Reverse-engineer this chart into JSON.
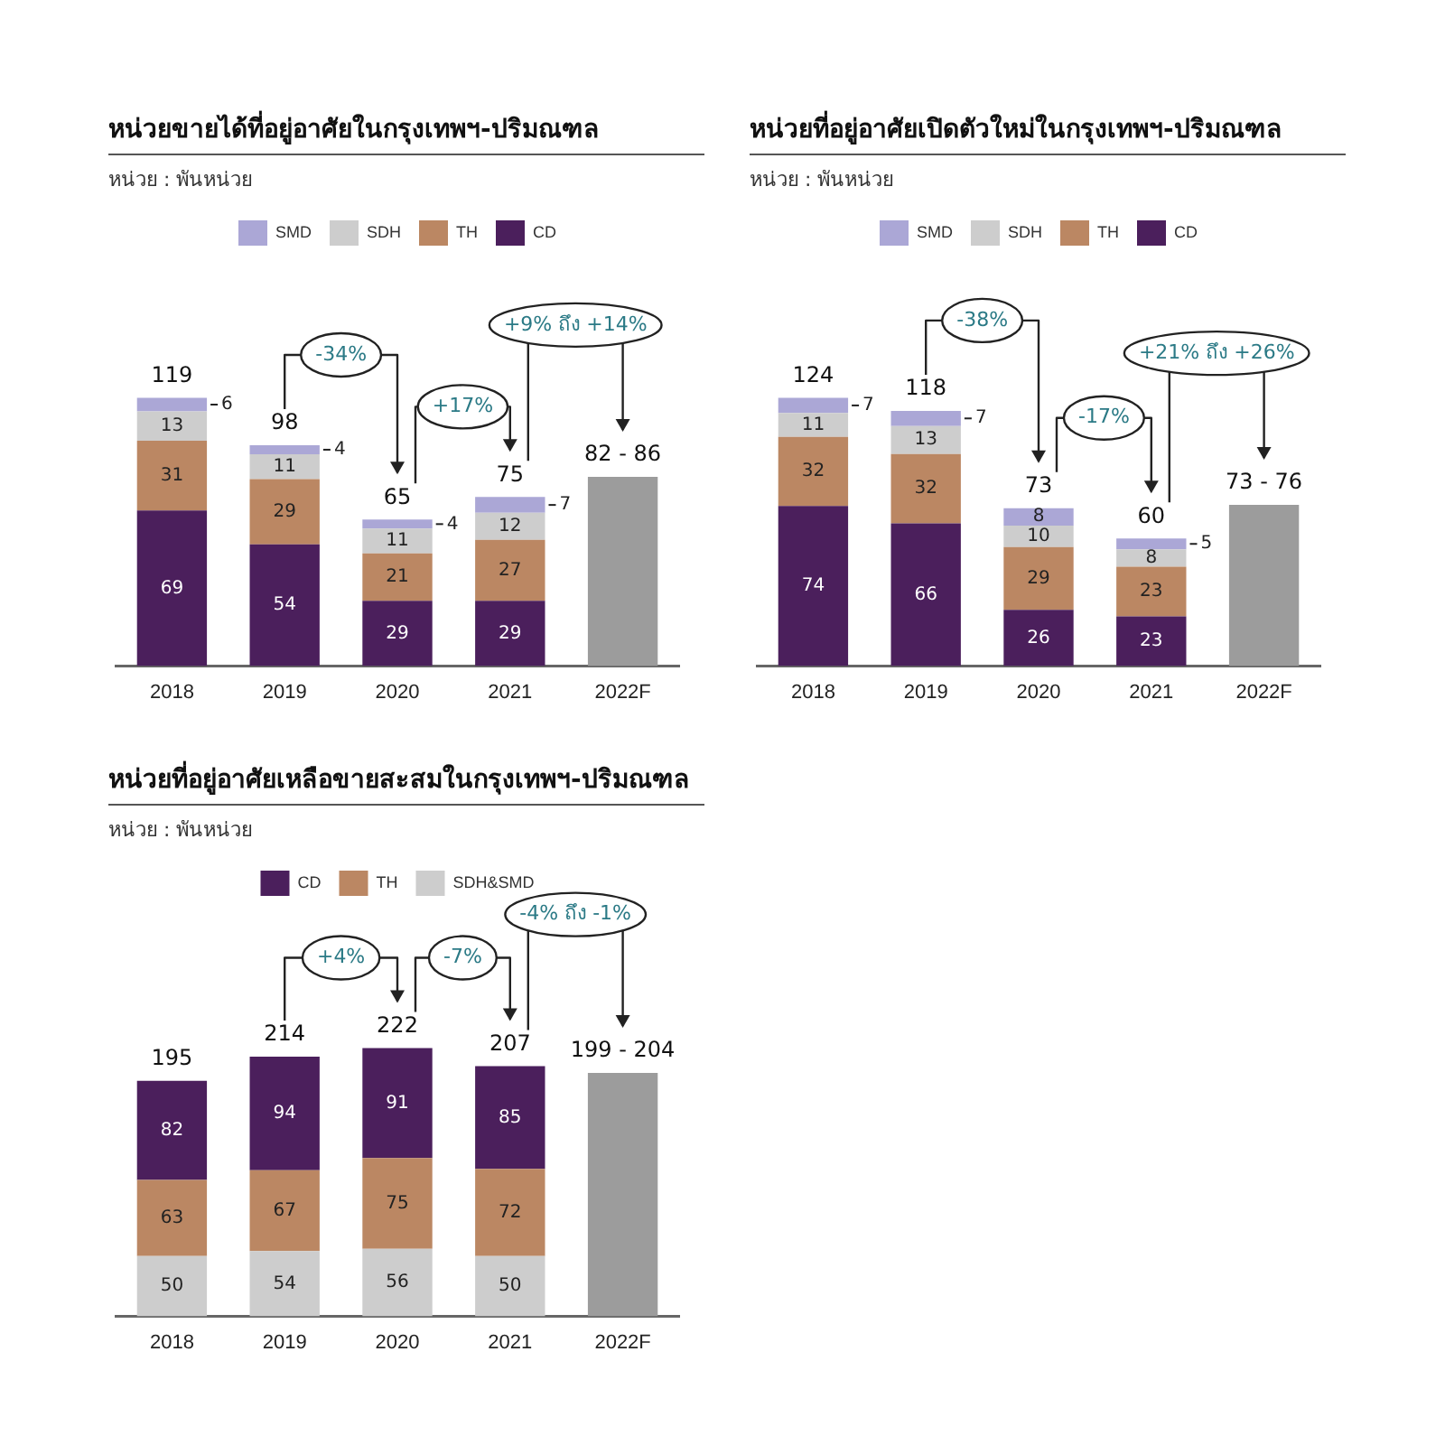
{
  "chart_data": [
    {
      "type": "bar",
      "title": "หน่วยขายได้ที่อยู่อาศัยในกรุงเทพฯ-ปริมณฑล",
      "subtitle": "หน่วย : พันหน่วย",
      "stacked": true,
      "legend": "top",
      "grid": false,
      "tick_labels": "x",
      "categories": [
        "2018",
        "2019",
        "2020",
        "2021",
        "2022F"
      ],
      "series": [
        {
          "name": "CD",
          "color": "#4b1f5c",
          "values": [
            69,
            54,
            29,
            29,
            null
          ],
          "value_labels": [
            "69",
            "54",
            "29",
            "29",
            null
          ]
        },
        {
          "name": "TH",
          "color": "#bb8763",
          "values": [
            31,
            29,
            21,
            27,
            null
          ],
          "value_labels": [
            "31",
            "29",
            "21",
            "27",
            null
          ]
        },
        {
          "name": "SDH",
          "color": "#cdcdcd",
          "values": [
            13,
            11,
            11,
            12,
            null
          ],
          "value_labels": [
            "13",
            "11",
            "11",
            "12",
            null
          ]
        },
        {
          "name": "SMD",
          "color": "#aba7d6",
          "values": [
            6,
            4,
            4,
            7,
            null
          ],
          "value_labels": [
            "6",
            "4",
            "4",
            "7",
            null
          ]
        },
        {
          "color": "#9c9c9c",
          "values": [
            null,
            null,
            null,
            null,
            84
          ],
          "value_labels": [
            null,
            null,
            null,
            null,
            null
          ]
        }
      ],
      "totals": [
        "119",
        "98",
        "65",
        "75",
        "82 - 86"
      ],
      "annotations": [
        "-34%",
        "+17%",
        "+9% ถึง +14%"
      ]
    },
    {
      "type": "bar",
      "title": "หน่วยที่อยู่อาศัยเปิดตัวใหม่ในกรุงเทพฯ-ปริมณฑล",
      "subtitle": "หน่วย : พันหน่วย",
      "stacked": true,
      "legend": "top",
      "grid": false,
      "tick_labels": "x",
      "categories": [
        "2018",
        "2019",
        "2020",
        "2021",
        "2022F"
      ],
      "series": [
        {
          "name": "CD",
          "color": "#4b1f5c",
          "values": [
            74,
            66,
            26,
            23,
            null
          ],
          "value_labels": [
            "74",
            "66",
            "26",
            "23",
            null
          ]
        },
        {
          "name": "TH",
          "color": "#bb8763",
          "values": [
            32,
            32,
            29,
            23,
            null
          ],
          "value_labels": [
            "32",
            "32",
            "29",
            "23",
            null
          ]
        },
        {
          "name": "SDH",
          "color": "#cdcdcd",
          "values": [
            11,
            13,
            10,
            8,
            null
          ],
          "value_labels": [
            "11",
            "13",
            "10",
            "8",
            null
          ]
        },
        {
          "name": "SMD",
          "color": "#aba7d6",
          "values": [
            7,
            7,
            8,
            5,
            null
          ],
          "value_labels": [
            "7",
            "7",
            "8",
            "5",
            null
          ]
        },
        {
          "color": "#9c9c9c",
          "values": [
            null,
            null,
            null,
            null,
            74.5
          ],
          "value_labels": [
            null,
            null,
            null,
            null,
            null
          ]
        }
      ],
      "totals": [
        "124",
        "118",
        "73",
        "60",
        "73 - 76"
      ],
      "annotations": [
        "-38%",
        "-17%",
        "+21% ถึง +26%"
      ]
    },
    {
      "type": "bar",
      "title": "หน่วยที่อยู่อาศัยเหลือขายสะสมในกรุงเทพฯ-ปริมณฑล",
      "subtitle": "หน่วย : พันหน่วย",
      "stacked": true,
      "legend": "top",
      "grid": false,
      "tick_labels": "x",
      "categories": [
        "2018",
        "2019",
        "2020",
        "2021",
        "2022F"
      ],
      "series": [
        {
          "name": "SDH&SMD",
          "color": "#cdcdcd",
          "values": [
            50,
            54,
            56,
            50,
            null
          ],
          "value_labels": [
            "50",
            "54",
            "56",
            "50",
            null
          ]
        },
        {
          "name": "TH",
          "color": "#bb8763",
          "values": [
            63,
            67,
            75,
            72,
            null
          ],
          "value_labels": [
            "63",
            "67",
            "75",
            "72",
            null
          ]
        },
        {
          "name": "CD",
          "color": "#4b1f5c",
          "values": [
            82,
            94,
            91,
            85,
            null
          ],
          "value_labels": [
            "82",
            "94",
            "91",
            "85",
            null
          ]
        },
        {
          "color": "#9c9c9c",
          "values": [
            null,
            null,
            null,
            null,
            201.5
          ],
          "value_labels": [
            null,
            null,
            null,
            null,
            null
          ]
        }
      ],
      "totals": [
        "195",
        "214",
        "222",
        "207",
        "199 - 204"
      ],
      "annotations": [
        "+4%",
        "-7%",
        "-4% ถึง -1%"
      ]
    }
  ]
}
